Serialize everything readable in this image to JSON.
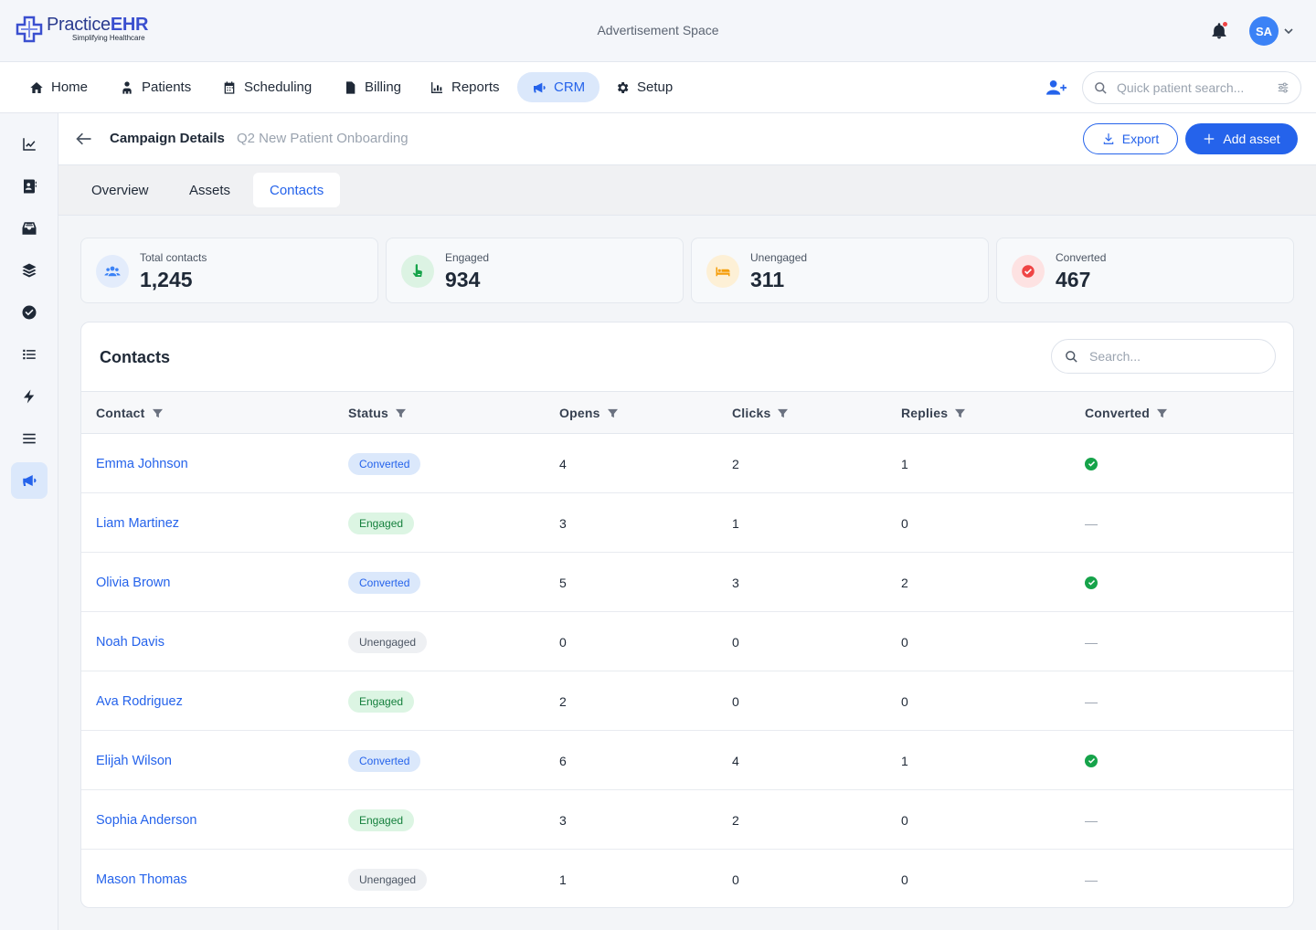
{
  "header": {
    "logo_name_a": "Practice",
    "logo_name_b": "EHR",
    "logo_tagline": "Simplifying Healthcare",
    "ad_space": "Advertisement Space",
    "avatar_initials": "SA"
  },
  "nav": {
    "items": [
      {
        "label": "Home",
        "icon": "home-icon"
      },
      {
        "label": "Patients",
        "icon": "patients-icon"
      },
      {
        "label": "Scheduling",
        "icon": "calendar-icon"
      },
      {
        "label": "Billing",
        "icon": "billing-icon"
      },
      {
        "label": "Reports",
        "icon": "reports-icon"
      },
      {
        "label": "CRM",
        "icon": "megaphone-icon",
        "active": true
      },
      {
        "label": "Setup",
        "icon": "gear-icon"
      }
    ],
    "search_placeholder": "Quick patient search..."
  },
  "sidebar": {
    "icons": [
      "chart-line-icon",
      "contact-book-icon",
      "inbox-icon",
      "layers-icon",
      "check-circle-icon",
      "list-icon",
      "bolt-icon",
      "menu-lines-icon",
      "megaphone-icon"
    ]
  },
  "page": {
    "title": "Campaign Details",
    "subtitle": "Q2 New Patient Onboarding",
    "export_label": "Export",
    "add_label": "Add asset"
  },
  "tabs": [
    {
      "label": "Overview"
    },
    {
      "label": "Assets"
    },
    {
      "label": "Contacts",
      "active": true
    }
  ],
  "stats": [
    {
      "label": "Total contacts",
      "value": "1,245",
      "icon": "users-icon",
      "color": "#3b82f6"
    },
    {
      "label": "Engaged",
      "value": "934",
      "icon": "pointer-hand-icon",
      "color": "#16a34a"
    },
    {
      "label": "Unengaged",
      "value": "311",
      "icon": "bed-icon",
      "color": "#f59e0b"
    },
    {
      "label": "Converted",
      "value": "467",
      "icon": "check-badge-icon",
      "color": "#ef4444"
    }
  ],
  "contacts": {
    "title": "Contacts",
    "search_placeholder": "Search...",
    "columns": [
      "Contact",
      "Status",
      "Opens",
      "Clicks",
      "Replies",
      "Converted"
    ],
    "rows": [
      {
        "name": "Emma Johnson",
        "status": "Converted",
        "opens": "4",
        "clicks": "2",
        "replies": "1",
        "converted": true
      },
      {
        "name": "Liam Martinez",
        "status": "Engaged",
        "opens": "3",
        "clicks": "1",
        "replies": "0",
        "converted": false
      },
      {
        "name": "Olivia Brown",
        "status": "Converted",
        "opens": "5",
        "clicks": "3",
        "replies": "2",
        "converted": true
      },
      {
        "name": "Noah Davis",
        "status": "Unengaged",
        "opens": "0",
        "clicks": "0",
        "replies": "0",
        "converted": false
      },
      {
        "name": "Ava Rodriguez",
        "status": "Engaged",
        "opens": "2",
        "clicks": "0",
        "replies": "0",
        "converted": false
      },
      {
        "name": "Elijah Wilson",
        "status": "Converted",
        "opens": "6",
        "clicks": "4",
        "replies": "1",
        "converted": true
      },
      {
        "name": "Sophia Anderson",
        "status": "Engaged",
        "opens": "3",
        "clicks": "2",
        "replies": "0",
        "converted": false
      },
      {
        "name": "Mason Thomas",
        "status": "Unengaged",
        "opens": "1",
        "clicks": "0",
        "replies": "0",
        "converted": false
      }
    ],
    "not_converted_mark": "—"
  },
  "colors": {
    "accent": "#2563eb",
    "accent_soft": "#dbe8fb",
    "success": "#16a34a"
  }
}
